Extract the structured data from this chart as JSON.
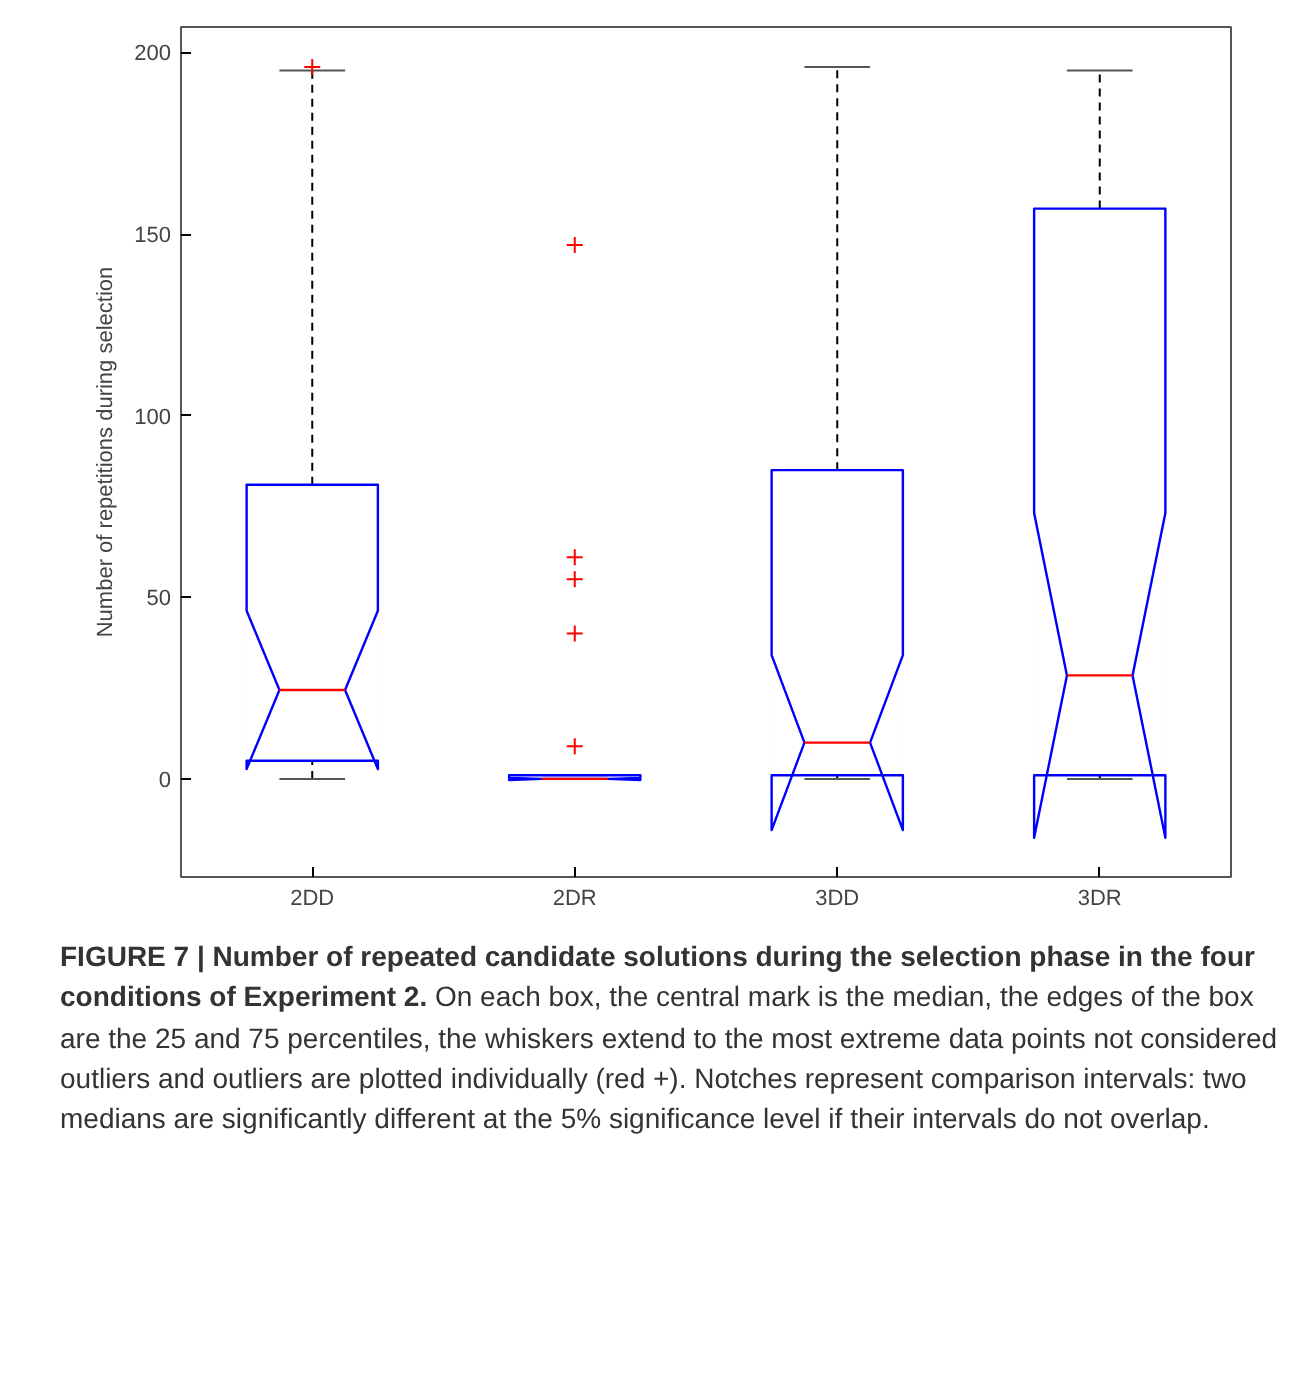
{
  "chart_data": {
    "type": "box",
    "title": "FIGURE 7 | Number of repeated candidate solutions during the selection phase in the four conditions of Experiment 2.",
    "annotations": [
      "On each box, the central mark is the median, the edges of the box are the 25 and 75 percentiles, the whiskers extend to the most extreme data points not considered outliers and outliers are plotted individually (red +). Notches represent comparison intervals: two medians are significantly different at the 5% significance level if their intervals do not overlap."
    ],
    "ylabel": "Number of repetitions during selection",
    "categories": [
      "2DD",
      "2DR",
      "3DD",
      "3DR"
    ],
    "ylim": [
      -27,
      207
    ],
    "yticks": [
      0,
      50,
      100,
      150,
      200
    ],
    "grid": false,
    "series": [
      {
        "color": "#0000ff",
        "boxes": [
          {
            "low": 0,
            "q1": 5,
            "median": 24.5,
            "q3": 81,
            "high": 195,
            "outliers": [
              196
            ]
          },
          {
            "low": 0,
            "q1": 0,
            "median": 0,
            "q3": 1,
            "high": 1,
            "outliers": [
              9,
              40,
              55,
              61,
              147
            ]
          },
          {
            "low": 0,
            "q1": 1,
            "median": 10,
            "q3": 85,
            "high": 196
          },
          {
            "low": 0,
            "q1": 1,
            "median": 28.5,
            "q3": 157,
            "high": 195
          }
        ]
      }
    ]
  }
}
